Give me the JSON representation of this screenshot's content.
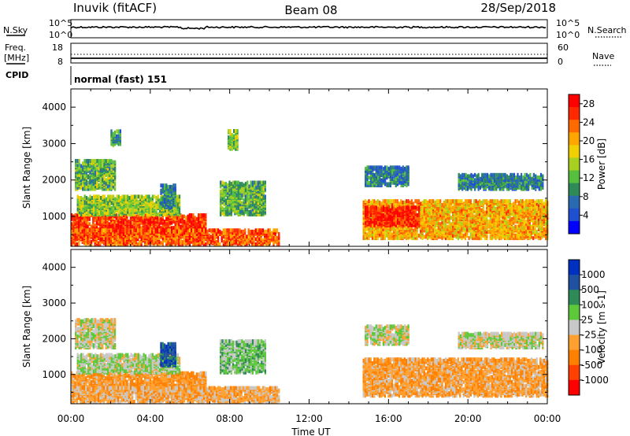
{
  "header": {
    "station": "Inuvik (fitACF)",
    "beam": "Beam 08",
    "date": "28/Sep/2018"
  },
  "strip": {
    "nsky_label": "N.Sky",
    "nsky_ticks": [
      "10^5",
      "10^0"
    ],
    "nsearch_label": "N.Search",
    "nsearch_ticks": [
      "10^5",
      "10^0"
    ],
    "freq_label": "Freq.",
    "freq_unit": "[MHz]",
    "freq_ticks": [
      "18",
      "8"
    ],
    "nave_label": "Nave",
    "nave_ticks": [
      "60",
      "0"
    ],
    "cpid_label": "CPID",
    "cpid_value": "normal (fast) 151"
  },
  "x_axis": {
    "label": "Time UT",
    "ticks": [
      "00:00",
      "04:00",
      "08:00",
      "12:00",
      "16:00",
      "20:00",
      "00:00"
    ]
  },
  "chart_data": [
    {
      "type": "heatmap",
      "quantity": "Power",
      "ylabel": "Slant Range [km]",
      "xlabel": "Time UT",
      "xlim": [
        0,
        24
      ],
      "ylim": [
        180,
        4500
      ],
      "yticks": [
        1000,
        2000,
        3000,
        4000
      ],
      "colorbar": {
        "label": "Power [dB]",
        "ticks": [
          "4",
          "8",
          "12",
          "16",
          "20",
          "24",
          "28"
        ],
        "colors": [
          "#0000ff",
          "#2050d0",
          "#2a6ab0",
          "#2e8b57",
          "#56c03e",
          "#a8d020",
          "#f0d000",
          "#ffa500",
          "#ff6a00",
          "#ff2800",
          "#ff0000"
        ]
      },
      "echo_regions": [
        {
          "t0": 0.0,
          "t1": 6.8,
          "r0": 350,
          "r1": 1000,
          "level": 26
        },
        {
          "t0": 0.0,
          "t1": 10.5,
          "r0": 180,
          "r1": 600,
          "level": 24
        },
        {
          "t0": 0.3,
          "t1": 5.5,
          "r0": 1000,
          "r1": 1500,
          "level": 14
        },
        {
          "t0": 0.2,
          "t1": 2.2,
          "r0": 1700,
          "r1": 2500,
          "level": 12
        },
        {
          "t0": 2.0,
          "t1": 2.5,
          "r0": 2900,
          "r1": 3300,
          "level": 10
        },
        {
          "t0": 4.5,
          "t1": 5.3,
          "r0": 1200,
          "r1": 1800,
          "level": 8
        },
        {
          "t0": 7.5,
          "t1": 9.8,
          "r0": 1000,
          "r1": 1900,
          "level": 12
        },
        {
          "t0": 7.9,
          "t1": 8.4,
          "r0": 2800,
          "r1": 3300,
          "level": 14
        },
        {
          "t0": 14.7,
          "t1": 24.0,
          "r0": 350,
          "r1": 1400,
          "level": 20
        },
        {
          "t0": 14.8,
          "t1": 17.5,
          "r0": 700,
          "r1": 1200,
          "level": 27
        },
        {
          "t0": 14.8,
          "t1": 17.0,
          "r0": 1800,
          "r1": 2300,
          "level": 8
        },
        {
          "t0": 19.5,
          "t1": 23.8,
          "r0": 1700,
          "r1": 2100,
          "level": 8
        }
      ]
    },
    {
      "type": "heatmap",
      "quantity": "Velocity",
      "ylabel": "Slant Range [km]",
      "xlabel": "Time UT",
      "xlim": [
        0,
        24
      ],
      "ylim": [
        180,
        4500
      ],
      "yticks": [
        1000,
        2000,
        3000,
        4000
      ],
      "colorbar": {
        "label": "Velocity [m s-1]",
        "ticks": [
          "1000",
          "500",
          "100",
          "25",
          "-25",
          "-100",
          "-500",
          "-1000"
        ],
        "colors": [
          "#0030c0",
          "#2050a0",
          "#2e8b57",
          "#5cc83a",
          "#c8c8c8",
          "#ffa030",
          "#ff7f00",
          "#ff4000",
          "#ff0000"
        ]
      },
      "echo_regions": [
        {
          "t0": 0.0,
          "t1": 6.8,
          "r0": 350,
          "r1": 1000,
          "level": -300
        },
        {
          "t0": 0.0,
          "t1": 10.5,
          "r0": 180,
          "r1": 600,
          "level": -200
        },
        {
          "t0": 0.3,
          "t1": 5.5,
          "r0": 1000,
          "r1": 1500,
          "level": 80
        },
        {
          "t0": 0.2,
          "t1": 2.2,
          "r0": 1700,
          "r1": 2500,
          "level": 0
        },
        {
          "t0": 4.5,
          "t1": 5.3,
          "r0": 1200,
          "r1": 1800,
          "level": 700
        },
        {
          "t0": 7.5,
          "t1": 9.8,
          "r0": 1000,
          "r1": 1900,
          "level": 200
        },
        {
          "t0": 14.7,
          "t1": 24.0,
          "r0": 350,
          "r1": 1400,
          "level": -250
        },
        {
          "t0": 14.8,
          "t1": 17.0,
          "r0": 1800,
          "r1": 2300,
          "level": 50
        },
        {
          "t0": 19.5,
          "t1": 23.8,
          "r0": 1700,
          "r1": 2100,
          "level": 0
        }
      ]
    }
  ]
}
